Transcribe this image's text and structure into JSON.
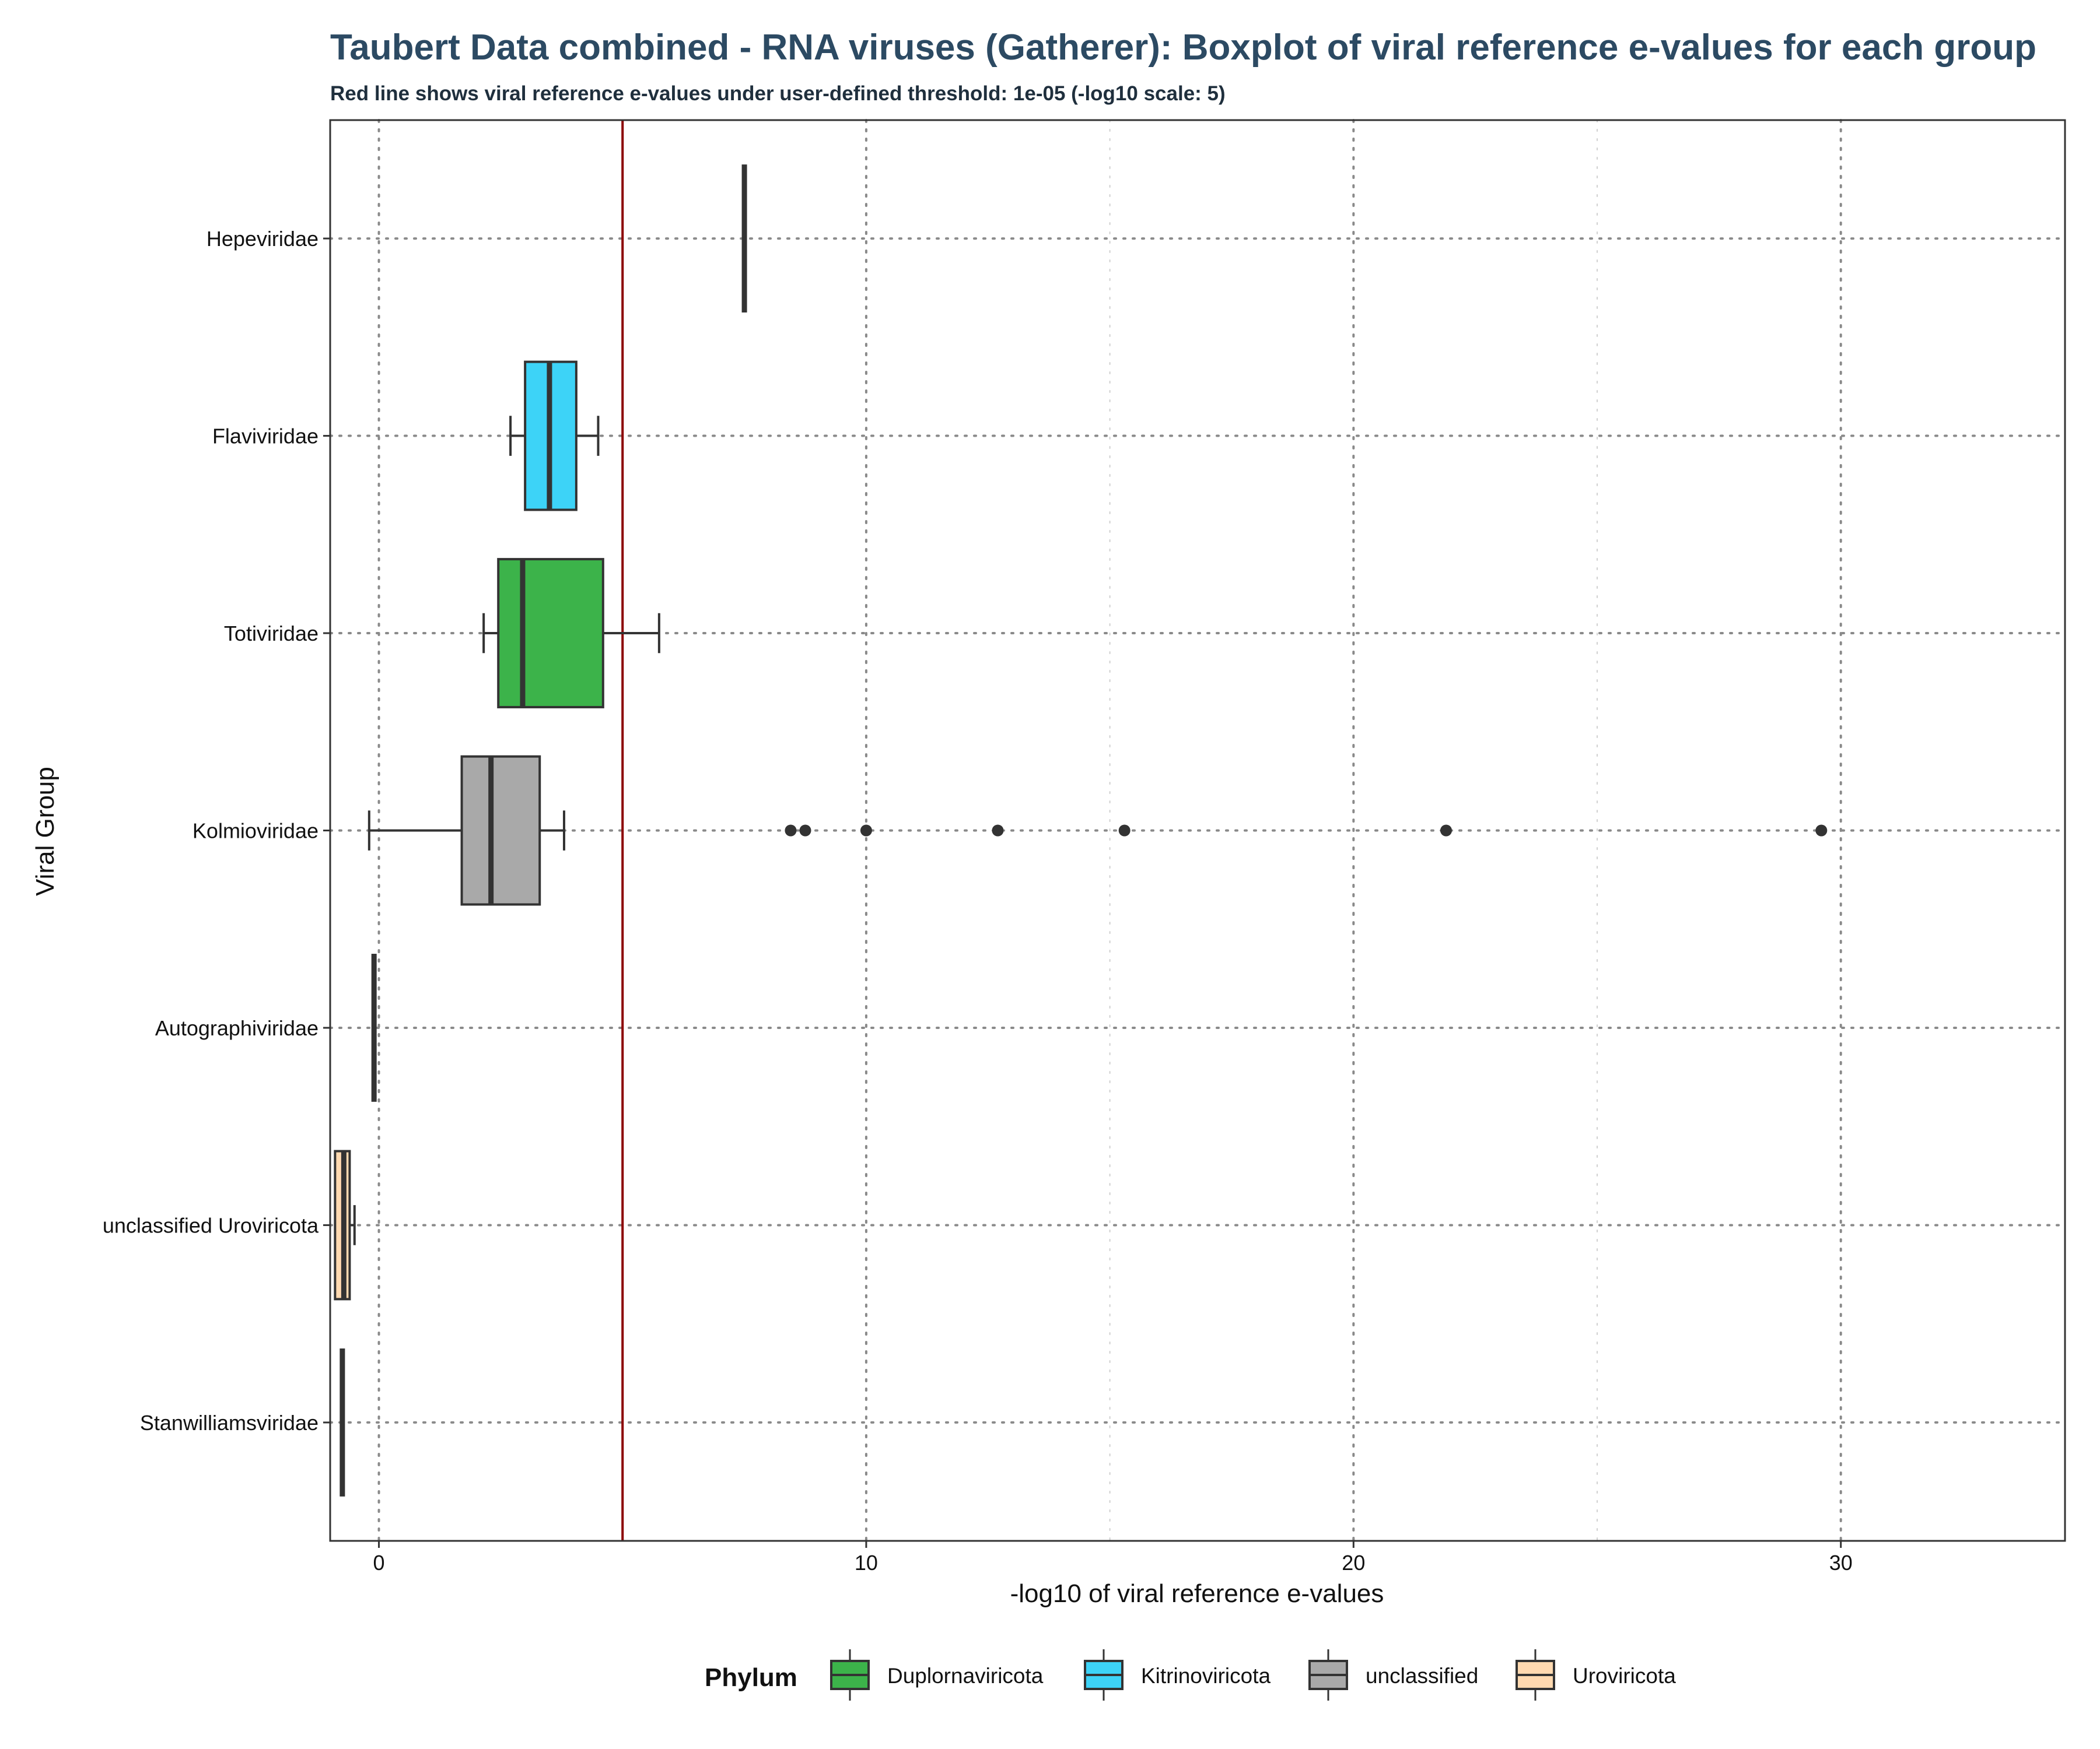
{
  "chart_data": {
    "type": "boxplot",
    "orientation": "horizontal",
    "title": "Taubert Data combined - RNA viruses (Gatherer): Boxplot of viral reference e-values for each group",
    "subtitle": "Red line shows viral reference e-values under user-defined threshold: 1e-05 (-log10 scale: 5)",
    "xlabel": "-log10 of viral reference e-values",
    "ylabel": "Viral Group",
    "xlim": [
      -1,
      34.6
    ],
    "x_ticks": [
      0,
      10,
      20,
      30
    ],
    "threshold": 5,
    "threshold_color": "#8b0000",
    "grid": "dotted",
    "legend_position": "bottom",
    "legend_title": "Phylum",
    "legend": [
      {
        "name": "Duplornaviricota",
        "color": "#3cb34a"
      },
      {
        "name": "Kitrinoviricota",
        "color": "#3dd3f7"
      },
      {
        "name": "unclassified",
        "color": "#a9a9a9"
      },
      {
        "name": "Uroviricota",
        "color": "#ffd9b0"
      }
    ],
    "groups": [
      {
        "label": "Hepeviridae",
        "phylum": "Kitrinoviricota",
        "whisker_low": 7.5,
        "q1": 7.5,
        "median": 7.5,
        "q3": 7.5,
        "whisker_high": 7.5,
        "outliers": []
      },
      {
        "label": "Flaviviridae",
        "phylum": "Kitrinoviricota",
        "whisker_low": 2.7,
        "q1": 3.0,
        "median": 3.5,
        "q3": 4.05,
        "whisker_high": 4.5,
        "outliers": []
      },
      {
        "label": "Totiviridae",
        "phylum": "Duplornaviricota",
        "whisker_low": 2.15,
        "q1": 2.45,
        "median": 2.95,
        "q3": 4.6,
        "whisker_high": 5.75,
        "outliers": []
      },
      {
        "label": "Kolmioviridae",
        "phylum": "unclassified",
        "whisker_low": -0.2,
        "q1": 1.7,
        "median": 2.3,
        "q3": 3.3,
        "whisker_high": 3.8,
        "outliers": [
          8.45,
          8.75,
          10.0,
          12.7,
          15.3,
          21.9,
          29.6
        ]
      },
      {
        "label": "Autographiviridae",
        "phylum": "unclassified",
        "whisker_low": -0.1,
        "q1": -0.1,
        "median": -0.1,
        "q3": -0.1,
        "whisker_high": -0.1,
        "outliers": []
      },
      {
        "label": "unclassified Uroviricota",
        "phylum": "Uroviricota",
        "whisker_low": -0.9,
        "q1": -0.9,
        "median": -0.72,
        "q3": -0.6,
        "whisker_high": -0.5,
        "outliers": []
      },
      {
        "label": "Stanwilliamsviridae",
        "phylum": "unclassified",
        "whisker_low": -0.75,
        "q1": -0.75,
        "median": -0.75,
        "q3": -0.75,
        "whisker_high": -0.75,
        "outliers": []
      }
    ]
  }
}
